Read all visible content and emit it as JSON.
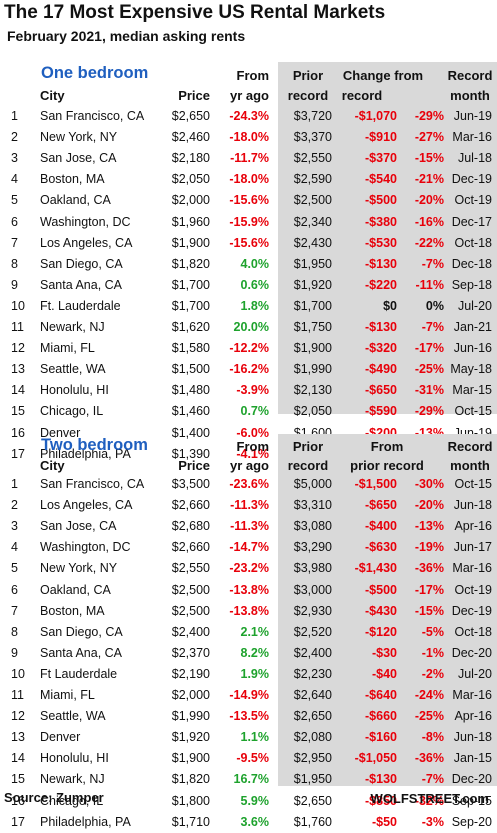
{
  "title": "The 17 Most Expensive US Rental Markets",
  "subtitle": "February 2021, median asking rents",
  "one_bedroom": {
    "section_title": "One bedroom",
    "headers": {
      "city": "City",
      "price": "Price",
      "from1": "From",
      "from2": "yr ago",
      "prior1": "Prior",
      "prior2": "record",
      "change1": "Change from",
      "change2": "record",
      "month1": "Record",
      "month2": "month"
    }
  },
  "two_bedroom": {
    "section_title": "Two bedroom",
    "headers": {
      "city": "City",
      "price": "Price",
      "from1": "From",
      "from2": "yr ago",
      "prior1": "Prior",
      "prior2": "record",
      "change1": "From",
      "change2": "prior record",
      "month1": "Record",
      "month2": "month"
    }
  },
  "chart_data": [
    {
      "type": "table",
      "title": "One bedroom",
      "columns": [
        "",
        "City",
        "Price",
        "From yr ago",
        "Prior record",
        "Change from record ($)",
        "Change from record (%)",
        "Record month"
      ],
      "rows": [
        [
          "1",
          "San Francisco, CA",
          "$2,650",
          "-24.3%",
          "$3,720",
          "-$1,070",
          "-29%",
          "Jun-19"
        ],
        [
          "2",
          "New York, NY",
          "$2,460",
          "-18.0%",
          "$3,370",
          "-$910",
          "-27%",
          "Mar-16"
        ],
        [
          "3",
          "San Jose, CA",
          "$2,180",
          "-11.7%",
          "$2,550",
          "-$370",
          "-15%",
          "Jul-18"
        ],
        [
          "4",
          "Boston, MA",
          "$2,050",
          "-18.0%",
          "$2,590",
          "-$540",
          "-21%",
          "Dec-19"
        ],
        [
          "5",
          "Oakland, CA",
          "$2,000",
          "-15.6%",
          "$2,500",
          "-$500",
          "-20%",
          "Oct-19"
        ],
        [
          "6",
          "Washington, DC",
          "$1,960",
          "-15.9%",
          "$2,340",
          "-$380",
          "-16%",
          "Dec-17"
        ],
        [
          "7",
          "Los Angeles, CA",
          "$1,900",
          "-15.6%",
          "$2,430",
          "-$530",
          "-22%",
          "Oct-18"
        ],
        [
          "8",
          "San Diego, CA",
          "$1,820",
          "4.0%",
          "$1,950",
          "-$130",
          "-7%",
          "Dec-18"
        ],
        [
          "9",
          "Santa Ana, CA",
          "$1,700",
          "0.6%",
          "$1,920",
          "-$220",
          "-11%",
          "Sep-18"
        ],
        [
          "10",
          "Ft. Lauderdale",
          "$1,700",
          "1.8%",
          "$1,700",
          "$0",
          "0%",
          "Jul-20"
        ],
        [
          "11",
          "Newark, NJ",
          "$1,620",
          "20.0%",
          "$1,750",
          "-$130",
          "-7%",
          "Jan-21"
        ],
        [
          "12",
          "Miami, FL",
          "$1,580",
          "-12.2%",
          "$1,900",
          "-$320",
          "-17%",
          "Jun-16"
        ],
        [
          "13",
          "Seattle, WA",
          "$1,500",
          "-16.2%",
          "$1,990",
          "-$490",
          "-25%",
          "May-18"
        ],
        [
          "14",
          "Honolulu, HI",
          "$1,480",
          "-3.9%",
          "$2,130",
          "-$650",
          "-31%",
          "Mar-15"
        ],
        [
          "15",
          "Chicago, IL",
          "$1,460",
          "0.7%",
          "$2,050",
          "-$590",
          "-29%",
          "Oct-15"
        ],
        [
          "16",
          "Denver",
          "$1,400",
          "-6.0%",
          "$1,600",
          "-$200",
          "-13%",
          "Jun-19"
        ],
        [
          "17",
          "Philadelphia, PA",
          "$1,390",
          "-4.1%",
          "$1,550",
          "-$160",
          "-10%",
          "Sep-18"
        ]
      ]
    },
    {
      "type": "table",
      "title": "Two bedroom",
      "columns": [
        "",
        "City",
        "Price",
        "From yr ago",
        "Prior record",
        "From prior record ($)",
        "From prior record (%)",
        "Record month"
      ],
      "rows": [
        [
          "1",
          "San Francisco, CA",
          "$3,500",
          "-23.6%",
          "$5,000",
          "-$1,500",
          "-30%",
          "Oct-15"
        ],
        [
          "2",
          "Los Angeles, CA",
          "$2,660",
          "-11.3%",
          "$3,310",
          "-$650",
          "-20%",
          "Jun-18"
        ],
        [
          "3",
          "San Jose, CA",
          "$2,680",
          "-11.3%",
          "$3,080",
          "-$400",
          "-13%",
          "Apr-16"
        ],
        [
          "4",
          "Washington, DC",
          "$2,660",
          "-14.7%",
          "$3,290",
          "-$630",
          "-19%",
          "Jun-17"
        ],
        [
          "5",
          "New York, NY",
          "$2,550",
          "-23.2%",
          "$3,980",
          "-$1,430",
          "-36%",
          "Mar-16"
        ],
        [
          "6",
          "Oakland, CA",
          "$2,500",
          "-13.8%",
          "$3,000",
          "-$500",
          "-17%",
          "Oct-19"
        ],
        [
          "7",
          "Boston, MA",
          "$2,500",
          "-13.8%",
          "$2,930",
          "-$430",
          "-15%",
          "Dec-19"
        ],
        [
          "8",
          "San Diego, CA",
          "$2,400",
          "2.1%",
          "$2,520",
          "-$120",
          "-5%",
          "Oct-18"
        ],
        [
          "9",
          "Santa Ana, CA",
          "$2,370",
          "8.2%",
          "$2,400",
          "-$30",
          "-1%",
          "Dec-20"
        ],
        [
          "10",
          "Ft Lauderdale",
          "$2,190",
          "1.9%",
          "$2,230",
          "-$40",
          "-2%",
          "Jul-20"
        ],
        [
          "11",
          "Miami, FL",
          "$2,000",
          "-14.9%",
          "$2,640",
          "-$640",
          "-24%",
          "Mar-16"
        ],
        [
          "12",
          "Seattle, WA",
          "$1,990",
          "-13.5%",
          "$2,650",
          "-$660",
          "-25%",
          "Apr-16"
        ],
        [
          "13",
          "Denver",
          "$1,920",
          "1.1%",
          "$2,080",
          "-$160",
          "-8%",
          "Jun-18"
        ],
        [
          "14",
          "Honolulu, HI",
          "$1,900",
          "-9.5%",
          "$2,950",
          "-$1,050",
          "-36%",
          "Jan-15"
        ],
        [
          "15",
          "Newark, NJ",
          "$1,820",
          "16.7%",
          "$1,950",
          "-$130",
          "-7%",
          "Dec-20"
        ],
        [
          "16",
          "Chicago, IL",
          "$1,800",
          "5.9%",
          "$2,650",
          "-$850",
          "-32%",
          "Sep-15"
        ],
        [
          "17",
          "Philadelphia, PA",
          "$1,710",
          "3.6%",
          "$1,760",
          "-$50",
          "-3%",
          "Sep-20"
        ]
      ]
    }
  ],
  "colors": {
    "title_blue": "#1f5fbf",
    "negative": "#e8000a",
    "positive": "#1ea22d",
    "shade": "#d9d9d9"
  },
  "footer": {
    "source": "Source: Zumper",
    "brand": "WOLFSTREET.com"
  }
}
